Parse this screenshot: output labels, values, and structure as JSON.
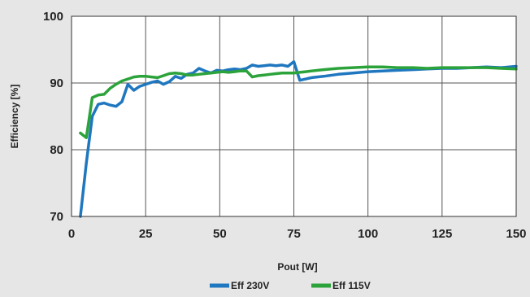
{
  "chart_data": {
    "type": "line",
    "title": "",
    "xlabel": "Pout [W]",
    "ylabel": "Efficiency [%]",
    "xlim": [
      0,
      150
    ],
    "ylim": [
      70,
      100
    ],
    "x_ticks": [
      "0",
      "25",
      "50",
      "75",
      "100",
      "125",
      "150"
    ],
    "y_ticks": [
      "70",
      "80",
      "90",
      "100"
    ],
    "grid": true,
    "legend_position": "bottom",
    "series": [
      {
        "name": "Eff 230V",
        "color": "#1f77bf",
        "x": [
          3,
          5,
          7,
          9,
          11,
          13,
          15,
          17,
          19,
          21,
          23,
          25,
          27,
          29,
          31,
          33,
          35,
          37,
          39,
          41,
          43,
          45,
          47,
          49,
          51,
          53,
          55,
          57,
          59,
          61,
          63,
          65,
          67,
          69,
          71,
          73,
          75,
          77,
          79,
          81,
          85,
          90,
          95,
          100,
          105,
          110,
          115,
          120,
          125,
          130,
          135,
          140,
          145,
          150
        ],
        "y": [
          70,
          78,
          85,
          86.8,
          87,
          86.7,
          86.5,
          87.2,
          89.8,
          88.9,
          89.5,
          89.8,
          90.1,
          90.3,
          89.8,
          90.2,
          91.0,
          90.7,
          91.3,
          91.5,
          92.2,
          91.8,
          91.5,
          91.9,
          91.8,
          92.0,
          92.1,
          92.0,
          92.2,
          92.7,
          92.5,
          92.6,
          92.7,
          92.6,
          92.7,
          92.5,
          93.2,
          90.4,
          90.6,
          90.8,
          91.0,
          91.3,
          91.5,
          91.7,
          91.8,
          91.9,
          92.0,
          92.1,
          92.2,
          92.2,
          92.3,
          92.4,
          92.3,
          92.5
        ]
      },
      {
        "name": "Eff 115V",
        "color": "#2ca33a",
        "x": [
          3,
          5,
          7,
          9,
          11,
          13,
          15,
          17,
          19,
          21,
          23,
          25,
          27,
          29,
          31,
          33,
          35,
          37,
          39,
          41,
          43,
          45,
          47,
          49,
          51,
          53,
          55,
          57,
          59,
          61,
          63,
          65,
          67,
          69,
          71,
          73,
          75,
          77,
          79,
          81,
          85,
          90,
          95,
          100,
          105,
          110,
          115,
          120,
          125,
          130,
          135,
          140,
          145,
          150
        ],
        "y": [
          82.5,
          81.8,
          87.8,
          88.2,
          88.3,
          89.2,
          89.8,
          90.3,
          90.6,
          90.9,
          91.0,
          91.0,
          90.9,
          90.8,
          91.1,
          91.4,
          91.5,
          91.4,
          91.2,
          91.2,
          91.3,
          91.4,
          91.5,
          91.6,
          91.7,
          91.6,
          91.7,
          91.8,
          91.8,
          90.9,
          91.1,
          91.2,
          91.3,
          91.4,
          91.5,
          91.5,
          91.5,
          91.6,
          91.7,
          91.8,
          92.0,
          92.2,
          92.3,
          92.4,
          92.4,
          92.3,
          92.3,
          92.2,
          92.3,
          92.3,
          92.3,
          92.3,
          92.2,
          92.1
        ]
      }
    ]
  }
}
